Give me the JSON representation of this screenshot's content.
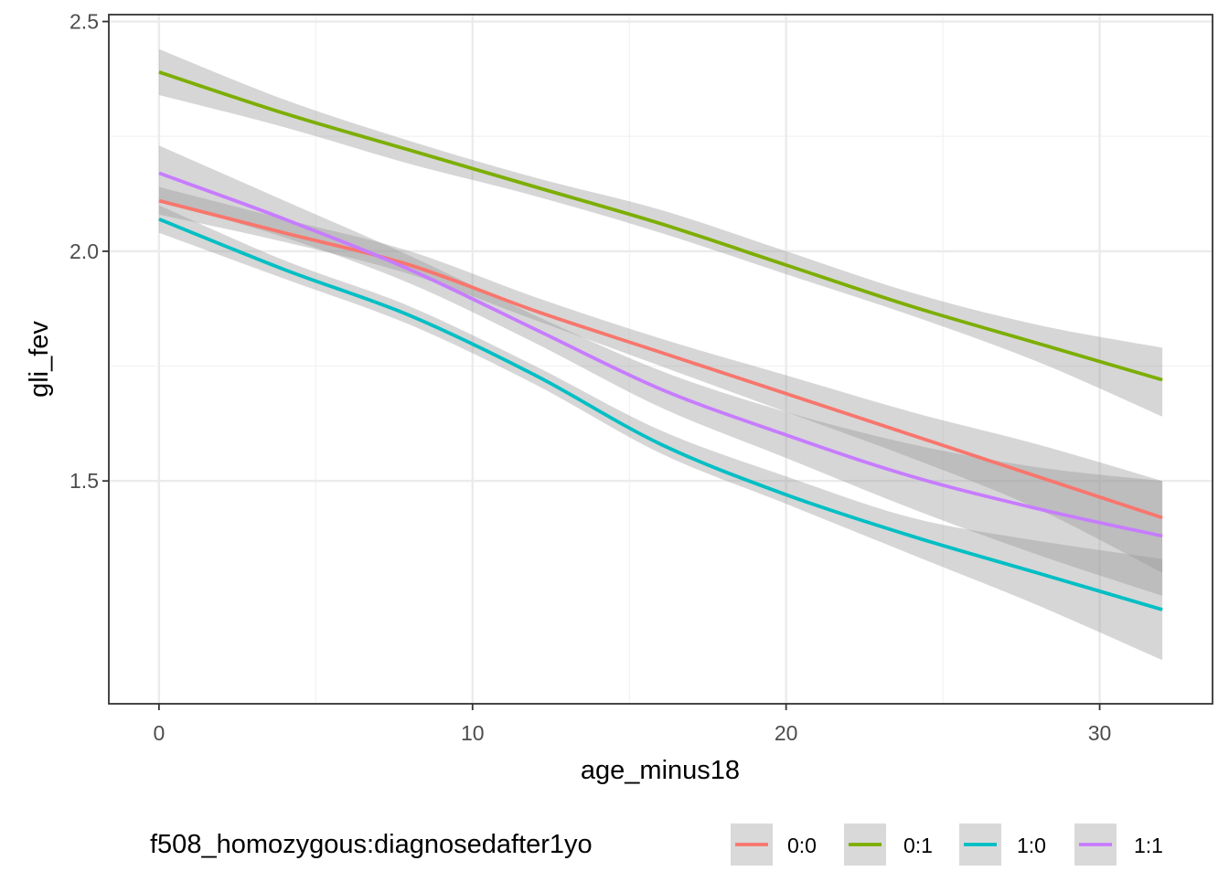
{
  "chart_data": {
    "type": "line",
    "title": "",
    "xlabel": "age_minus18",
    "ylabel": "gli_fev",
    "xlim": [
      -1.6,
      33.6
    ],
    "ylim": [
      1.015,
      2.515
    ],
    "x_ticks": [
      0,
      10,
      20,
      30
    ],
    "y_ticks": [
      1.5,
      2.0,
      2.5
    ],
    "x_tick_labels": [
      "0",
      "10",
      "20",
      "30"
    ],
    "y_tick_labels": [
      "1.5",
      "2.0",
      "2.5"
    ],
    "grid": true,
    "legend": {
      "title": "f508_homozygous:diagnosedafter1yo",
      "position": "bottom"
    },
    "x": [
      0,
      4,
      8,
      12,
      16,
      20,
      24,
      28,
      32
    ],
    "series": [
      {
        "name": "0:0",
        "color": "#F8766D",
        "values": [
          2.11,
          2.04,
          1.97,
          1.87,
          1.78,
          1.69,
          1.6,
          1.51,
          1.42
        ],
        "ci_lower": [
          2.08,
          2.02,
          1.95,
          1.85,
          1.75,
          1.65,
          1.55,
          1.44,
          1.3
        ],
        "ci_upper": [
          2.14,
          2.07,
          2.0,
          1.9,
          1.81,
          1.73,
          1.65,
          1.58,
          1.5
        ]
      },
      {
        "name": "0:1",
        "color": "#7CAE00",
        "values": [
          2.39,
          2.3,
          2.22,
          2.14,
          2.06,
          1.97,
          1.88,
          1.8,
          1.72
        ],
        "ci_lower": [
          2.34,
          2.27,
          2.19,
          2.12,
          2.04,
          1.95,
          1.86,
          1.76,
          1.64
        ],
        "ci_upper": [
          2.44,
          2.33,
          2.24,
          2.16,
          2.09,
          2.0,
          1.91,
          1.84,
          1.79
        ]
      },
      {
        "name": "1:0",
        "color": "#00BFC4",
        "values": [
          2.07,
          1.96,
          1.86,
          1.73,
          1.58,
          1.47,
          1.38,
          1.3,
          1.22
        ],
        "ci_lower": [
          2.04,
          1.94,
          1.84,
          1.71,
          1.56,
          1.45,
          1.34,
          1.23,
          1.11
        ],
        "ci_upper": [
          2.1,
          1.98,
          1.88,
          1.75,
          1.61,
          1.51,
          1.42,
          1.37,
          1.33
        ]
      },
      {
        "name": "1:1",
        "color": "#C77CFF",
        "values": [
          2.17,
          2.07,
          1.96,
          1.83,
          1.7,
          1.6,
          1.51,
          1.44,
          1.38
        ],
        "ci_lower": [
          2.11,
          2.03,
          1.93,
          1.8,
          1.66,
          1.55,
          1.44,
          1.34,
          1.25
        ],
        "ci_upper": [
          2.23,
          2.11,
          1.99,
          1.86,
          1.74,
          1.65,
          1.58,
          1.53,
          1.5
        ]
      }
    ]
  }
}
